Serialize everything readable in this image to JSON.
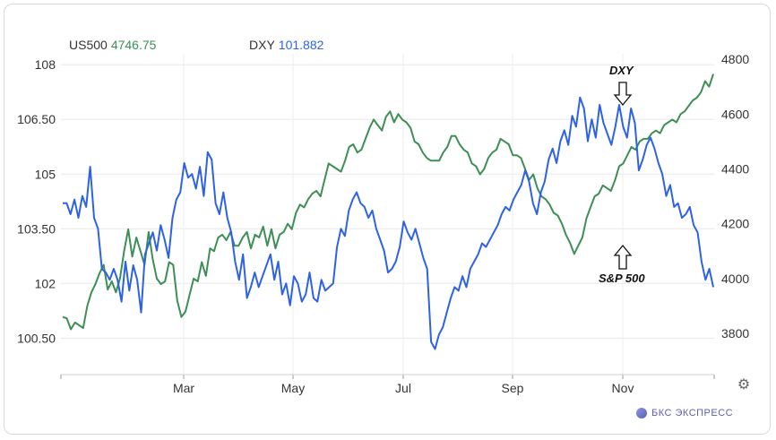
{
  "legend": [
    {
      "name": "US500",
      "value": "4746.75",
      "color": "#3d8f55"
    },
    {
      "name": "DXY",
      "value": "101.882",
      "color": "#2d62e6"
    }
  ],
  "annotations": {
    "dxy": "DXY",
    "sp": "S&P 500"
  },
  "brand": "БКС ЭКСПРЕСС",
  "chart_data": {
    "type": "line",
    "xlabel": "",
    "ylabel": "",
    "x_ticks": [
      "Mar",
      "May",
      "Jul",
      "Sep",
      "Nov"
    ],
    "y_left": {
      "ticks": [
        "100.50",
        "102",
        "103.50",
        "105",
        "106.50",
        "108"
      ],
      "range": [
        99.5,
        108.3
      ]
    },
    "y_right": {
      "ticks": [
        "3800",
        "4000",
        "4200",
        "4400",
        "4600",
        "4800"
      ],
      "range": [
        3650,
        4820
      ]
    },
    "grid": true,
    "series": [
      {
        "name": "DXY",
        "axis": "left",
        "color": "#2d62e6",
        "values": [
          104.2,
          104.2,
          103.9,
          104.3,
          103.8,
          104.4,
          104.1,
          105.2,
          103.8,
          103.5,
          102.4,
          102.3,
          102.1,
          102.4,
          102.1,
          101.5,
          102.6,
          101.8,
          102.5,
          102.1,
          101.2,
          102.8,
          103.1,
          103.4,
          102.9,
          103.6,
          103.2,
          102.7,
          103.8,
          104.3,
          104.5,
          105.3,
          104.9,
          105.0,
          104.6,
          105.2,
          104.4,
          105.6,
          105.4,
          104.2,
          103.9,
          104.5,
          103.8,
          103.4,
          102.6,
          102.1,
          102.8,
          101.6,
          101.9,
          102.3,
          101.9,
          102.2,
          102.5,
          102.8,
          102.1,
          102.6,
          101.7,
          102.0,
          101.4,
          102.2,
          102.0,
          101.5,
          101.7,
          102.3,
          101.6,
          101.5,
          102.1,
          101.8,
          101.9,
          102.0,
          103.0,
          103.5,
          103.3,
          104.0,
          104.3,
          104.5,
          104.2,
          104.1,
          103.8,
          104.0,
          103.5,
          103.2,
          102.9,
          102.3,
          102.4,
          102.6,
          103.0,
          103.7,
          103.4,
          103.2,
          103.5,
          103.1,
          102.7,
          102.4,
          100.4,
          100.2,
          100.6,
          100.8,
          101.2,
          101.6,
          101.9,
          101.8,
          102.2,
          101.9,
          102.4,
          102.6,
          102.8,
          103.1,
          103.0,
          103.2,
          103.4,
          103.6,
          103.9,
          104.1,
          104.0,
          104.3,
          104.5,
          104.7,
          105.1,
          104.8,
          104.2,
          103.9,
          104.5,
          104.8,
          105.4,
          105.7,
          105.3,
          105.9,
          106.2,
          105.8,
          106.6,
          106.3,
          107.1,
          106.8,
          105.9,
          106.5,
          106.0,
          106.9,
          106.4,
          106.1,
          105.8,
          106.3,
          106.9,
          106.3,
          106.0,
          106.8,
          106.4,
          105.1,
          105.4,
          105.8,
          106.0,
          105.7,
          105.3,
          105.0,
          104.4,
          104.7,
          104.1,
          104.2,
          103.8,
          103.9,
          104.1,
          103.6,
          103.4,
          102.6,
          102.1,
          102.4,
          101.9
        ]
      },
      {
        "name": "US500",
        "axis": "right",
        "color": "#3d8f55",
        "values": [
          3860,
          3855,
          3815,
          3840,
          3830,
          3820,
          3900,
          3950,
          3980,
          4020,
          4050,
          3960,
          3990,
          3950,
          4000,
          4100,
          4180,
          4080,
          4150,
          4100,
          4050,
          4170,
          4070,
          4000,
          3980,
          3990,
          4060,
          4050,
          3920,
          3860,
          3880,
          3940,
          4000,
          3990,
          4060,
          4010,
          4110,
          4100,
          4150,
          4160,
          4140,
          4170,
          4120,
          4120,
          4150,
          4170,
          4110,
          4160,
          4150,
          4190,
          4120,
          4180,
          4110,
          4160,
          4170,
          4200,
          4180,
          4240,
          4270,
          4260,
          4290,
          4310,
          4320,
          4300,
          4360,
          4420,
          4410,
          4400,
          4390,
          4430,
          4480,
          4490,
          4460,
          4470,
          4510,
          4550,
          4580,
          4560,
          4540,
          4590,
          4610,
          4570,
          4600,
          4580,
          4570,
          4550,
          4500,
          4490,
          4460,
          4440,
          4430,
          4430,
          4430,
          4460,
          4480,
          4520,
          4520,
          4490,
          4470,
          4460,
          4420,
          4410,
          4380,
          4400,
          4440,
          4460,
          4470,
          4510,
          4500,
          4490,
          4450,
          4450,
          4440,
          4400,
          4360,
          4380,
          4330,
          4300,
          4290,
          4270,
          4240,
          4230,
          4200,
          4160,
          4130,
          4090,
          4120,
          4150,
          4220,
          4260,
          4300,
          4310,
          4340,
          4330,
          4320,
          4360,
          4410,
          4420,
          4450,
          4480,
          4470,
          4500,
          4510,
          4510,
          4530,
          4540,
          4530,
          4560,
          4570,
          4580,
          4570,
          4600,
          4610,
          4630,
          4650,
          4660,
          4680,
          4720,
          4700,
          4746
        ]
      }
    ]
  }
}
